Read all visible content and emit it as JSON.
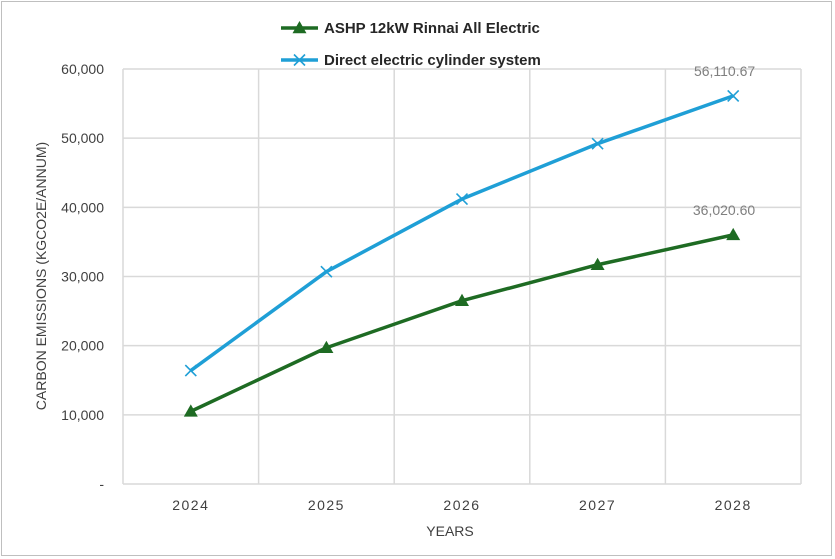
{
  "chart_data": {
    "type": "line",
    "categories": [
      "2024",
      "2025",
      "2026",
      "2027",
      "2028"
    ],
    "series": [
      {
        "name": "ASHP 12kW Rinnai All Electric",
        "values": [
          10500,
          19700,
          26500,
          31700,
          36020.6
        ],
        "color": "#1e6b23",
        "marker": "triangle",
        "end_label": "36,020.60"
      },
      {
        "name": "Direct electric cylinder system",
        "values": [
          16400,
          30700,
          41200,
          49200,
          56110.67
        ],
        "color": "#1f9fd6",
        "marker": "x",
        "end_label": "56,110.67"
      }
    ],
    "yticks": [
      "-",
      "10,000",
      "20,000",
      "30,000",
      "40,000",
      "50,000",
      "60,000"
    ],
    "ylim": [
      0,
      60000
    ],
    "xlabel": "YEARS",
    "ylabel": "CARBON EMISSIONS (KGCO2E/ANNUM)",
    "grid": true,
    "legend_position": "top"
  }
}
